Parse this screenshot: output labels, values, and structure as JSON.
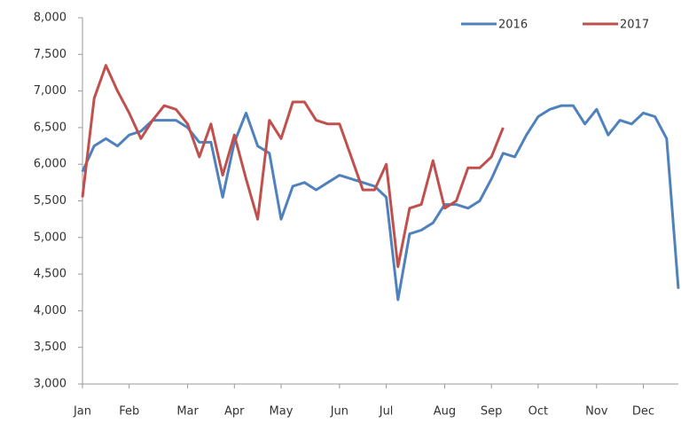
{
  "chart_data": {
    "type": "line",
    "categories": [
      "Jan",
      null,
      null,
      null,
      "Feb",
      null,
      null,
      null,
      null,
      "Mar",
      null,
      null,
      null,
      "Apr",
      null,
      null,
      null,
      "May",
      null,
      null,
      null,
      null,
      "Jun",
      null,
      null,
      null,
      "Jul",
      null,
      null,
      null,
      null,
      "Aug",
      null,
      null,
      null,
      "Sep",
      null,
      null,
      null,
      "Oct",
      null,
      null,
      null,
      null,
      "Nov",
      null,
      null,
      null,
      "Dec",
      null,
      null,
      null
    ],
    "series": [
      {
        "name": "2016",
        "color": "#4f81bd",
        "values": [
          5900,
          6250,
          6350,
          6250,
          6400,
          6450,
          6600,
          6600,
          6600,
          6500,
          6300,
          6300,
          5550,
          6300,
          6700,
          6250,
          6150,
          5250,
          5700,
          5750,
          5650,
          5750,
          5850,
          5800,
          5750,
          5700,
          5550,
          4150,
          5050,
          5100,
          5200,
          5450,
          5450,
          5400,
          5500,
          5800,
          6150,
          6100,
          6400,
          6650,
          6750,
          6800,
          6800,
          6550,
          6750,
          6400,
          6600,
          6550,
          6700,
          6650,
          6350,
          4300
        ]
      },
      {
        "name": "2017",
        "color": "#c0504d",
        "values": [
          5550,
          6900,
          7350,
          7000,
          6700,
          6350,
          6600,
          6800,
          6750,
          6550,
          6100,
          6550,
          5850,
          6400,
          5800,
          5250,
          6600,
          6350,
          6850,
          6850,
          6600,
          6550,
          6550,
          6100,
          5650,
          5650,
          6000,
          4600,
          5400,
          5450,
          6050,
          5400,
          5500,
          5950,
          5950,
          6100,
          6500,
          null,
          null,
          null,
          null,
          null,
          null,
          null,
          null,
          null,
          null,
          null,
          null,
          null,
          null,
          null
        ]
      }
    ],
    "ylim": [
      3000,
      8000
    ],
    "yticks": [
      {
        "value": 3000,
        "label": "3,000"
      },
      {
        "value": 3500,
        "label": "3,500"
      },
      {
        "value": 4000,
        "label": "4,000"
      },
      {
        "value": 4500,
        "label": "4,500"
      },
      {
        "value": 5000,
        "label": "5,000"
      },
      {
        "value": 5500,
        "label": "5,500"
      },
      {
        "value": 6000,
        "label": "6,000"
      },
      {
        "value": 6500,
        "label": "6,500"
      },
      {
        "value": 7000,
        "label": "7,000"
      },
      {
        "value": 7500,
        "label": "7,500"
      },
      {
        "value": 8000,
        "label": "8,000"
      }
    ],
    "legend": "top-right",
    "grid": false
  }
}
